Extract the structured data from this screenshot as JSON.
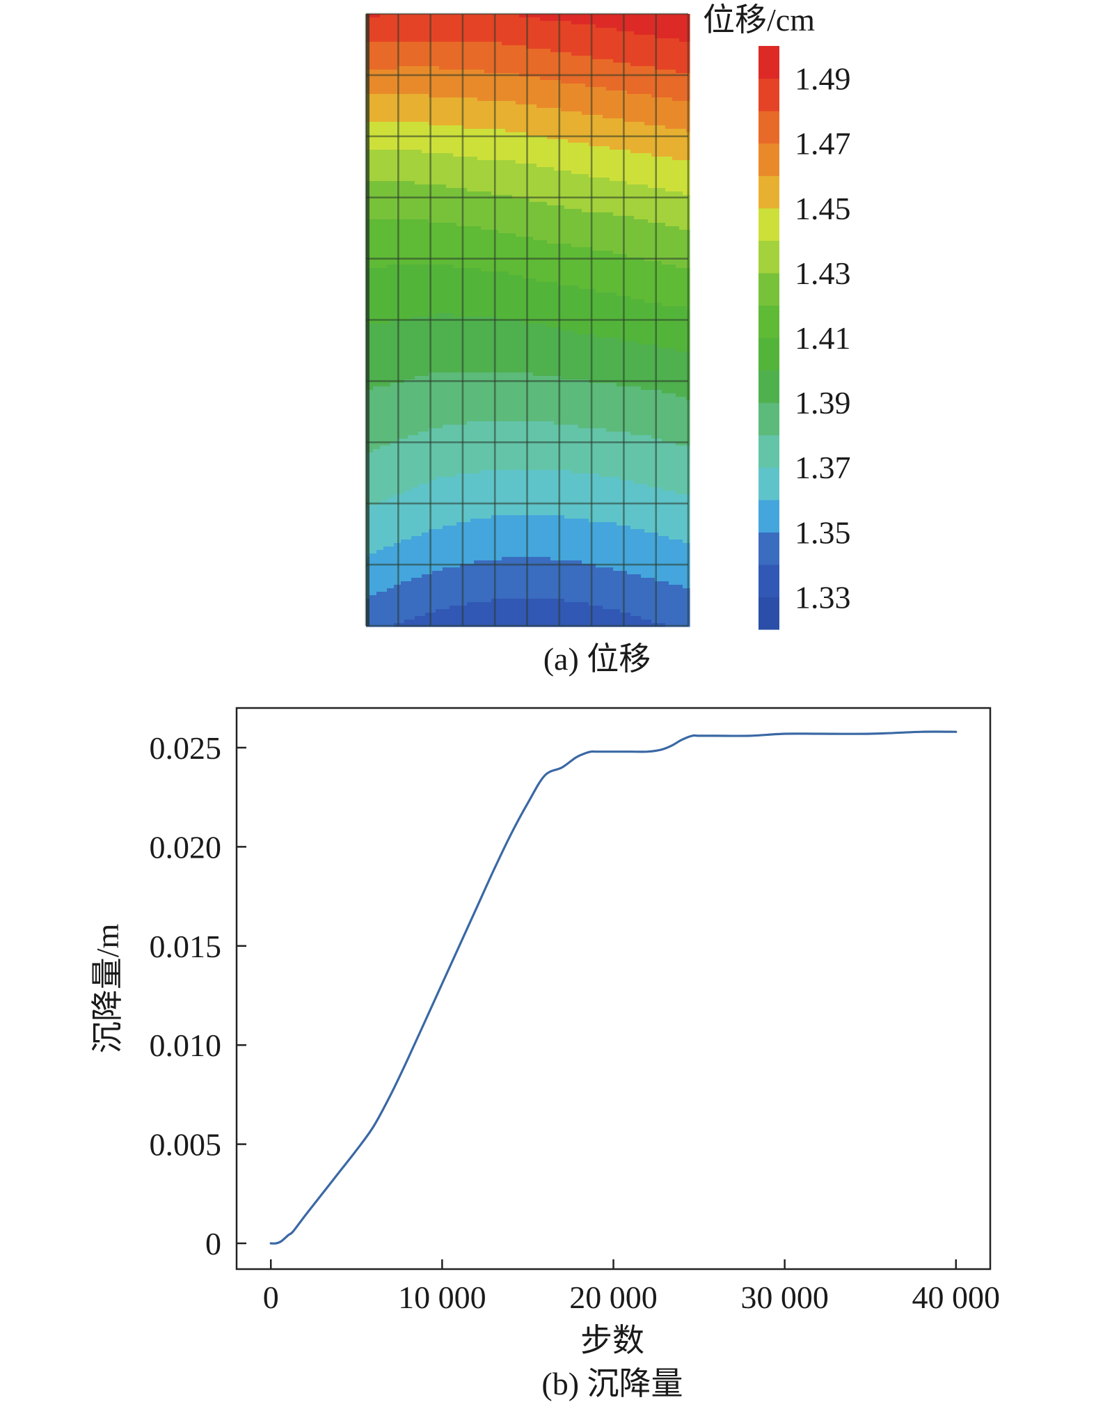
{
  "chart_data": [
    {
      "type": "heatmap",
      "caption": "(a) 位移",
      "colorbar": {
        "title": "位移/cm",
        "tick_labels": [
          "1.49",
          "1.47",
          "1.45",
          "1.43",
          "1.41",
          "1.39",
          "1.37",
          "1.35",
          "1.33"
        ],
        "range": [
          1.32,
          1.5
        ],
        "bands": [
          {
            "from": 1.32,
            "to": 1.33,
            "color": "#2b4fa8"
          },
          {
            "from": 1.33,
            "to": 1.34,
            "color": "#3158b4"
          },
          {
            "from": 1.34,
            "to": 1.35,
            "color": "#3a6cc0"
          },
          {
            "from": 1.35,
            "to": 1.36,
            "color": "#44a6dc"
          },
          {
            "from": 1.36,
            "to": 1.37,
            "color": "#5fc4c9"
          },
          {
            "from": 1.37,
            "to": 1.38,
            "color": "#63c4a8"
          },
          {
            "from": 1.38,
            "to": 1.39,
            "color": "#5cba7a"
          },
          {
            "from": 1.39,
            "to": 1.4,
            "color": "#4fb04e"
          },
          {
            "from": 1.4,
            "to": 1.41,
            "color": "#53b43a"
          },
          {
            "from": 1.41,
            "to": 1.42,
            "color": "#5fba36"
          },
          {
            "from": 1.42,
            "to": 1.43,
            "color": "#78c23a"
          },
          {
            "from": 1.43,
            "to": 1.44,
            "color": "#a4d23c"
          },
          {
            "from": 1.44,
            "to": 1.45,
            "color": "#cde03a"
          },
          {
            "from": 1.45,
            "to": 1.46,
            "color": "#e8b030"
          },
          {
            "from": 1.46,
            "to": 1.47,
            "color": "#e98a2a"
          },
          {
            "from": 1.47,
            "to": 1.48,
            "color": "#e86a28"
          },
          {
            "from": 1.48,
            "to": 1.49,
            "color": "#e54326"
          },
          {
            "from": 1.49,
            "to": 1.5,
            "color": "#dd2a26"
          }
        ]
      },
      "field_rows": [
        [
          1.491,
          1.49,
          1.49,
          1.49,
          1.49,
          1.492,
          1.493,
          1.495,
          1.497,
          1.498
        ],
        [
          1.472,
          1.471,
          1.471,
          1.472,
          1.473,
          1.475,
          1.477,
          1.479,
          1.481,
          1.483
        ],
        [
          1.452,
          1.452,
          1.453,
          1.454,
          1.455,
          1.457,
          1.459,
          1.461,
          1.463,
          1.465
        ],
        [
          1.434,
          1.434,
          1.435,
          1.437,
          1.438,
          1.44,
          1.442,
          1.444,
          1.446,
          1.448
        ],
        [
          1.42,
          1.42,
          1.421,
          1.422,
          1.424,
          1.426,
          1.428,
          1.429,
          1.431,
          1.433
        ],
        [
          1.41,
          1.409,
          1.409,
          1.41,
          1.411,
          1.413,
          1.414,
          1.416,
          1.418,
          1.42
        ],
        [
          1.401,
          1.4,
          1.399,
          1.399,
          1.4,
          1.401,
          1.403,
          1.404,
          1.406,
          1.407
        ],
        [
          1.393,
          1.392,
          1.39,
          1.39,
          1.39,
          1.391,
          1.392,
          1.393,
          1.394,
          1.396
        ],
        [
          1.385,
          1.383,
          1.381,
          1.38,
          1.38,
          1.38,
          1.381,
          1.382,
          1.383,
          1.385
        ],
        [
          1.377,
          1.374,
          1.371,
          1.37,
          1.369,
          1.369,
          1.37,
          1.371,
          1.373,
          1.375
        ],
        [
          1.367,
          1.364,
          1.361,
          1.359,
          1.358,
          1.358,
          1.359,
          1.36,
          1.362,
          1.364
        ],
        [
          1.356,
          1.352,
          1.349,
          1.347,
          1.346,
          1.346,
          1.347,
          1.349,
          1.351,
          1.353
        ],
        [
          1.343,
          1.339,
          1.336,
          1.334,
          1.333,
          1.333,
          1.334,
          1.336,
          1.339,
          1.341
        ]
      ],
      "mesh": {
        "columns": 10,
        "rows": 10
      }
    },
    {
      "type": "line",
      "caption": "(b) 沉降量",
      "xlabel": "步数",
      "ylabel": "沉降量/m",
      "xlim": [
        -2000,
        42000
      ],
      "ylim": [
        -0.0013,
        0.027
      ],
      "xticks": [
        0,
        10000,
        20000,
        30000,
        40000
      ],
      "xtick_labels": [
        "0",
        "10 000",
        "20 000",
        "30 000",
        "40 000"
      ],
      "yticks": [
        0,
        0.005,
        0.01,
        0.015,
        0.02,
        0.025
      ],
      "ytick_labels": [
        "0",
        "0.005",
        "0.010",
        "0.015",
        "0.020",
        "0.025"
      ],
      "grid": false,
      "line_color": "#3a68a4",
      "series": [
        {
          "x": [
            0,
            300,
            600,
            1000,
            1300,
            2000,
            3000,
            4000,
            5000,
            6000,
            7000,
            8000,
            9000,
            10000,
            11000,
            12000,
            13000,
            14000,
            15000,
            16000,
            17000,
            17800,
            18300,
            18700,
            19000,
            20000,
            21000,
            22000,
            22800,
            23400,
            24000,
            24600,
            25000,
            26000,
            28000,
            30000,
            32000,
            35000,
            38000,
            40000
          ],
          "y": [
            0,
            0,
            0.0001,
            0.0004,
            0.0006,
            0.0014,
            0.0025,
            0.0036,
            0.0047,
            0.0059,
            0.0075,
            0.0093,
            0.0112,
            0.0131,
            0.015,
            0.0169,
            0.0188,
            0.0206,
            0.0222,
            0.0236,
            0.024,
            0.0245,
            0.0247,
            0.0248,
            0.0248,
            0.0248,
            0.0248,
            0.0248,
            0.0249,
            0.0251,
            0.0254,
            0.0256,
            0.0256,
            0.0256,
            0.0256,
            0.0257,
            0.0257,
            0.0257,
            0.0258,
            0.0258
          ]
        }
      ]
    }
  ]
}
